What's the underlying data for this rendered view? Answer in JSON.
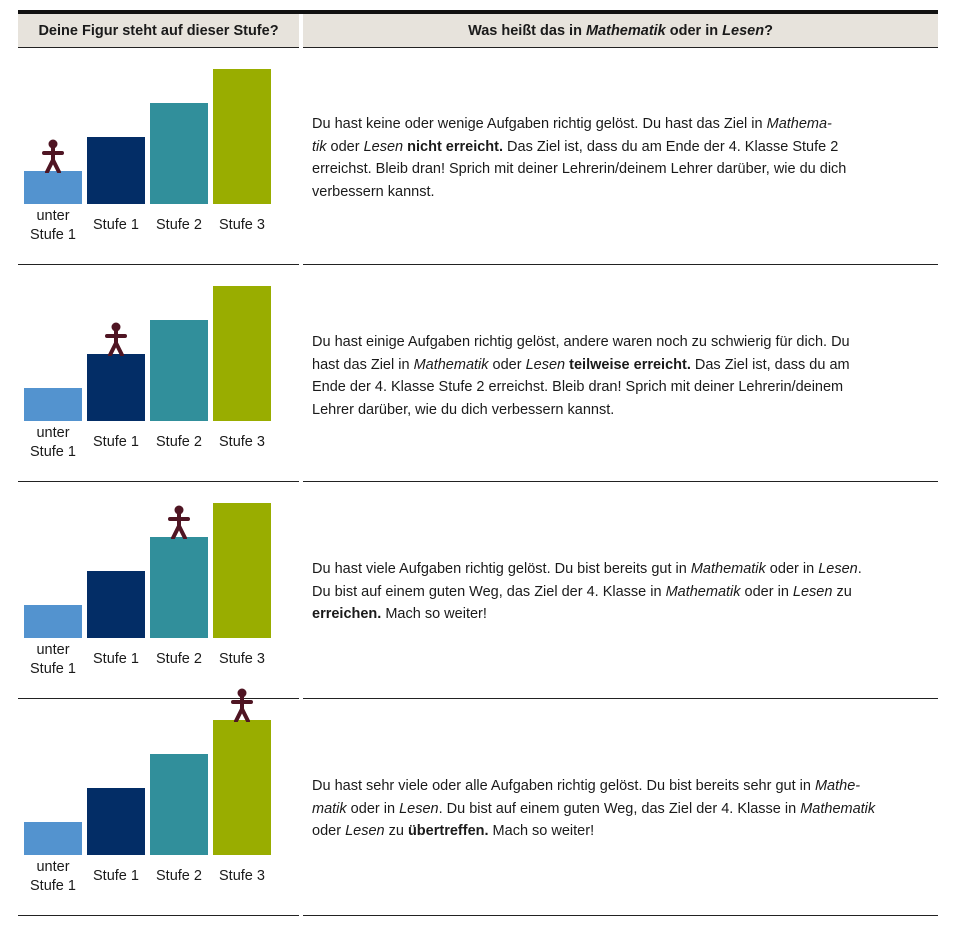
{
  "header": {
    "left": "Deine Figur steht auf dieser Stufe?",
    "right_pre": "Was heißt das in ",
    "right_math": "Mathematik",
    "right_mid": " oder in ",
    "right_read": "Lesen",
    "right_post": "?"
  },
  "labels": {
    "unter_1": "unter",
    "unter_2": "Stufe 1",
    "stufe1": "Stufe 1",
    "stufe2": "Stufe 2",
    "stufe3": "Stufe 3"
  },
  "colors": {
    "below": "#5393cf",
    "stufe1": "#032d66",
    "stufe2": "#318f9b",
    "stufe3": "#99ad00",
    "figure": "#4f1523",
    "header_bg": "#e7e3dc"
  },
  "rows": [
    {
      "figure_level": "unter Stufe 1",
      "text": [
        {
          "t": "Du hast keine oder wenige Aufgaben richtig gelöst. Du hast das Ziel in "
        },
        {
          "t": "Mathema-",
          "s": "i"
        },
        {
          "br": true
        },
        {
          "t": "tik",
          "s": "i"
        },
        {
          "t": " oder "
        },
        {
          "t": "Lesen",
          "s": "i"
        },
        {
          "t": " "
        },
        {
          "t": "nicht erreicht.",
          "s": "b"
        },
        {
          "t": " Das Ziel ist, dass du am Ende der 4. Klasse Stufe 2"
        },
        {
          "br": true
        },
        {
          "t": "erreichst. Bleib dran! Sprich mit deiner Lehrerin/deinem Lehrer darüber, wie du dich"
        },
        {
          "br": true
        },
        {
          "t": "verbessern kannst."
        }
      ]
    },
    {
      "figure_level": "Stufe 1",
      "text": [
        {
          "t": "Du hast einige Aufgaben richtig gelöst, andere waren noch zu schwierig für dich. Du"
        },
        {
          "br": true
        },
        {
          "t": "hast das Ziel in "
        },
        {
          "t": "Mathematik",
          "s": "i"
        },
        {
          "t": " oder "
        },
        {
          "t": "Lesen",
          "s": "i"
        },
        {
          "t": " "
        },
        {
          "t": "teilweise erreicht.",
          "s": "b"
        },
        {
          "t": " Das Ziel ist, dass du am"
        },
        {
          "br": true
        },
        {
          "t": "Ende der 4. Klasse Stufe 2 erreichst. Bleib dran! Sprich mit deiner Lehrerin/deinem"
        },
        {
          "br": true
        },
        {
          "t": "Lehrer darüber, wie du dich verbessern kannst."
        }
      ]
    },
    {
      "figure_level": "Stufe 2",
      "text": [
        {
          "t": "Du hast viele Aufgaben richtig gelöst. Du bist bereits gut in "
        },
        {
          "t": "Mathematik",
          "s": "i"
        },
        {
          "t": " oder in "
        },
        {
          "t": "Lesen",
          "s": "i"
        },
        {
          "t": "."
        },
        {
          "br": true
        },
        {
          "t": "Du bist auf einem guten Weg, das Ziel der 4. Klasse in "
        },
        {
          "t": "Mathematik",
          "s": "i"
        },
        {
          "t": " oder in "
        },
        {
          "t": "Lesen",
          "s": "i"
        },
        {
          "t": " zu"
        },
        {
          "br": true
        },
        {
          "t": "erreichen.",
          "s": "b"
        },
        {
          "t": " Mach so weiter!"
        }
      ]
    },
    {
      "figure_level": "Stufe 3",
      "text": [
        {
          "t": "Du hast sehr viele oder alle Aufgaben richtig gelöst. Du bist bereits sehr gut in "
        },
        {
          "t": "Mathe-",
          "s": "i"
        },
        {
          "br": true
        },
        {
          "t": "matik",
          "s": "i"
        },
        {
          "t": " oder in "
        },
        {
          "t": "Lesen",
          "s": "i"
        },
        {
          "t": ". Du bist auf einem guten Weg, das Ziel der 4. Klasse in "
        },
        {
          "t": "Mathematik",
          "s": "i"
        },
        {
          "br": true
        },
        {
          "t": "oder "
        },
        {
          "t": "Lesen",
          "s": "i"
        },
        {
          "t": " zu "
        },
        {
          "t": "übertreffen.",
          "s": "b"
        },
        {
          "t": " Mach so weiter!"
        }
      ]
    }
  ]
}
